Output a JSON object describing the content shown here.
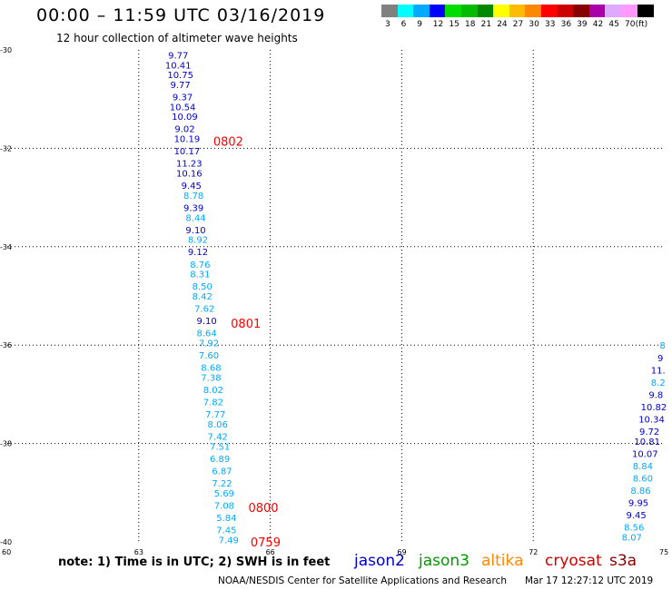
{
  "header": {
    "title": "00:00 – 11:59 UTC 03/16/2019",
    "subtitle": "12 hour collection of altimeter wave heights"
  },
  "legend": {
    "colors": [
      "#808080",
      "#00ffff",
      "#00aaff",
      "#0000ff",
      "#00dd00",
      "#00bb00",
      "#008800",
      "#ffff00",
      "#ffbb00",
      "#ff8800",
      "#ff0000",
      "#cc0000",
      "#880000",
      "#aa00aa",
      "#ddaaff",
      "#ff99ff",
      "#000000"
    ],
    "labels": [
      "3",
      "6",
      "9",
      "12",
      "15",
      "18",
      "21",
      "24",
      "27",
      "30",
      "33",
      "36",
      "39",
      "42",
      "45",
      "70",
      "(ft)"
    ]
  },
  "map": {
    "lat_ticks": [
      "-30",
      "-32",
      "-34",
      "-36",
      "-38",
      "-40"
    ],
    "lon_ticks": [
      "60",
      "63",
      "66",
      "69",
      "72",
      "75"
    ],
    "lat_range": [
      -40,
      -30
    ],
    "lon_range": [
      60,
      75
    ]
  },
  "tracks": [
    {
      "name": "track-west",
      "points": [
        {
          "lat": -30.1,
          "lon": 63.9,
          "text": "9.77",
          "color": "#0000cc"
        },
        {
          "lat": -30.3,
          "lon": 63.9,
          "text": "10.41",
          "color": "#0000cc"
        },
        {
          "lat": -30.5,
          "lon": 63.95,
          "text": "10.75",
          "color": "#0000cc"
        },
        {
          "lat": -30.7,
          "lon": 63.95,
          "text": "9.77",
          "color": "#0000cc"
        },
        {
          "lat": -30.95,
          "lon": 64.0,
          "text": "9.37",
          "color": "#0000cc"
        },
        {
          "lat": -31.15,
          "lon": 64.0,
          "text": "10.54",
          "color": "#0000cc"
        },
        {
          "lat": -31.35,
          "lon": 64.05,
          "text": "10.09",
          "color": "#0000cc"
        },
        {
          "lat": -31.6,
          "lon": 64.05,
          "text": "9.02",
          "color": "#0000cc"
        },
        {
          "lat": -31.8,
          "lon": 64.1,
          "text": "10.19",
          "color": "#0000cc"
        },
        {
          "lat": -32.05,
          "lon": 64.1,
          "text": "10.17",
          "color": "#0000cc"
        },
        {
          "lat": -32.3,
          "lon": 64.15,
          "text": "11.23",
          "color": "#0000cc"
        },
        {
          "lat": -32.5,
          "lon": 64.15,
          "text": "10.16",
          "color": "#0000cc"
        },
        {
          "lat": -32.75,
          "lon": 64.2,
          "text": "9.45",
          "color": "#0000cc"
        },
        {
          "lat": -32.95,
          "lon": 64.25,
          "text": "8.78",
          "color": "#00aaff"
        },
        {
          "lat": -33.2,
          "lon": 64.25,
          "text": "9.39",
          "color": "#0000cc"
        },
        {
          "lat": -33.4,
          "lon": 64.3,
          "text": "8.44",
          "color": "#00aaff"
        },
        {
          "lat": -33.65,
          "lon": 64.3,
          "text": "9.10",
          "color": "#0000cc"
        },
        {
          "lat": -33.85,
          "lon": 64.35,
          "text": "8.92",
          "color": "#00aaff"
        },
        {
          "lat": -34.1,
          "lon": 64.35,
          "text": "9.12",
          "color": "#0000cc"
        },
        {
          "lat": -34.35,
          "lon": 64.4,
          "text": "8.76",
          "color": "#00aaff"
        },
        {
          "lat": -34.55,
          "lon": 64.4,
          "text": "8.31",
          "color": "#00aaff"
        },
        {
          "lat": -34.8,
          "lon": 64.45,
          "text": "8.50",
          "color": "#00aaff"
        },
        {
          "lat": -35.0,
          "lon": 64.45,
          "text": "8.42",
          "color": "#00aaff"
        },
        {
          "lat": -35.25,
          "lon": 64.5,
          "text": "7.62",
          "color": "#00aaff"
        },
        {
          "lat": -35.5,
          "lon": 64.55,
          "text": "9.10",
          "color": "#0000cc"
        },
        {
          "lat": -35.75,
          "lon": 64.55,
          "text": "8.64",
          "color": "#00aaff"
        },
        {
          "lat": -35.95,
          "lon": 64.6,
          "text": "7.92",
          "color": "#00aaff"
        },
        {
          "lat": -36.2,
          "lon": 64.6,
          "text": "7.60",
          "color": "#00aaff"
        },
        {
          "lat": -36.45,
          "lon": 64.65,
          "text": "8.68",
          "color": "#00aaff"
        },
        {
          "lat": -36.65,
          "lon": 64.65,
          "text": "7.38",
          "color": "#00aaff"
        },
        {
          "lat": -36.9,
          "lon": 64.7,
          "text": "8.02",
          "color": "#00aaff"
        },
        {
          "lat": -37.15,
          "lon": 64.7,
          "text": "7.82",
          "color": "#00aaff"
        },
        {
          "lat": -37.4,
          "lon": 64.75,
          "text": "7.77",
          "color": "#00aaff"
        },
        {
          "lat": -37.6,
          "lon": 64.8,
          "text": "8.06",
          "color": "#00aaff"
        },
        {
          "lat": -37.85,
          "lon": 64.8,
          "text": "7.42",
          "color": "#00aaff"
        },
        {
          "lat": -38.05,
          "lon": 64.85,
          "text": "7.51",
          "color": "#00aaff"
        },
        {
          "lat": -38.3,
          "lon": 64.85,
          "text": "6.89",
          "color": "#00aaff"
        },
        {
          "lat": -38.55,
          "lon": 64.9,
          "text": "6.87",
          "color": "#00aaff"
        },
        {
          "lat": -38.8,
          "lon": 64.9,
          "text": "7.22",
          "color": "#00aaff"
        },
        {
          "lat": -39.0,
          "lon": 64.95,
          "text": "5.69",
          "color": "#00aaff"
        },
        {
          "lat": -39.25,
          "lon": 64.95,
          "text": "7.08",
          "color": "#00aaff"
        },
        {
          "lat": -39.5,
          "lon": 65.0,
          "text": "5.84",
          "color": "#00aaff"
        },
        {
          "lat": -39.75,
          "lon": 65.0,
          "text": "7.45",
          "color": "#00aaff"
        },
        {
          "lat": -39.95,
          "lon": 65.05,
          "text": "7.49",
          "color": "#00aaff"
        }
      ],
      "times": [
        {
          "lat": -31.85,
          "lon": 64.7,
          "text": "0802"
        },
        {
          "lat": -35.55,
          "lon": 65.1,
          "text": "0801"
        },
        {
          "lat": -39.3,
          "lon": 65.5,
          "text": "0800"
        },
        {
          "lat": -40.0,
          "lon": 65.55,
          "text": "0759"
        }
      ]
    },
    {
      "name": "track-east",
      "points": [
        {
          "lat": -36.0,
          "lon": 74.95,
          "text": "8",
          "color": "#00aaff"
        },
        {
          "lat": -36.25,
          "lon": 74.9,
          "text": "9",
          "color": "#0000cc"
        },
        {
          "lat": -36.5,
          "lon": 74.85,
          "text": "11.",
          "color": "#0000cc"
        },
        {
          "lat": -36.75,
          "lon": 74.85,
          "text": "8.2",
          "color": "#00aaff"
        },
        {
          "lat": -37.0,
          "lon": 74.8,
          "text": "9.8",
          "color": "#0000cc"
        },
        {
          "lat": -37.25,
          "lon": 74.75,
          "text": "10.82",
          "color": "#0000cc"
        },
        {
          "lat": -37.5,
          "lon": 74.7,
          "text": "10.34",
          "color": "#0000cc"
        },
        {
          "lat": -37.75,
          "lon": 74.65,
          "text": "9.72",
          "color": "#0000cc"
        },
        {
          "lat": -37.95,
          "lon": 74.6,
          "text": "10.81",
          "color": "#0000cc"
        },
        {
          "lat": -38.2,
          "lon": 74.55,
          "text": "10.07",
          "color": "#0000cc"
        },
        {
          "lat": -38.45,
          "lon": 74.5,
          "text": "8.84",
          "color": "#00aaff"
        },
        {
          "lat": -38.7,
          "lon": 74.5,
          "text": "8.60",
          "color": "#00aaff"
        },
        {
          "lat": -38.95,
          "lon": 74.45,
          "text": "8.86",
          "color": "#00aaff"
        },
        {
          "lat": -39.2,
          "lon": 74.4,
          "text": "9.95",
          "color": "#0000cc"
        },
        {
          "lat": -39.45,
          "lon": 74.35,
          "text": "9.45",
          "color": "#0000cc"
        },
        {
          "lat": -39.7,
          "lon": 74.3,
          "text": "8.56",
          "color": "#00aaff"
        },
        {
          "lat": -39.9,
          "lon": 74.25,
          "text": "8.07",
          "color": "#00aaff"
        }
      ],
      "times": []
    }
  ],
  "footer": {
    "note": "note: 1) Time is in UTC; 2) SWH is in feet",
    "credit": "NOAA/NESDIS Center for Satellite Applications and Research",
    "timestamp": "Mar 17 12:27:12 UTC 2019",
    "satellites": [
      {
        "name": "jason2",
        "color": "#0000cc"
      },
      {
        "name": "jason3",
        "color": "#009900"
      },
      {
        "name": "altika",
        "color": "#ff8800"
      },
      {
        "name": "cryosat",
        "color": "#cc0000"
      },
      {
        "name": "s3a",
        "color": "#880000"
      }
    ]
  }
}
